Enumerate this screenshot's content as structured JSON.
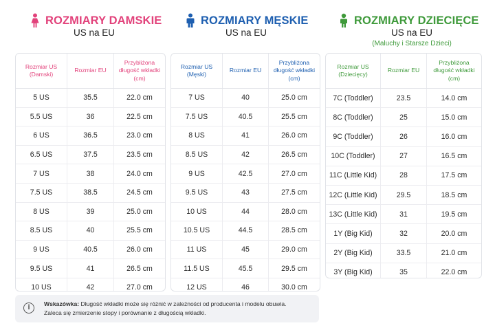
{
  "women": {
    "title": "ROZMIARY DAMSKIE",
    "subtitle": "US na EU",
    "icon": "woman-icon",
    "color": "#e2427b",
    "headers": [
      "Rozmiar US (Damski)",
      "Rozmiar EU",
      "Przybliżona długość wkładki (cm)"
    ],
    "rows": [
      [
        "5 US",
        "35.5",
        "22.0 cm"
      ],
      [
        "5.5 US",
        "36",
        "22.5 cm"
      ],
      [
        "6 US",
        "36.5",
        "23.0 cm"
      ],
      [
        "6.5 US",
        "37.5",
        "23.5 cm"
      ],
      [
        "7 US",
        "38",
        "24.0 cm"
      ],
      [
        "7.5 US",
        "38.5",
        "24.5 cm"
      ],
      [
        "8 US",
        "39",
        "25.0 cm"
      ],
      [
        "8.5 US",
        "40",
        "25.5 cm"
      ],
      [
        "9 US",
        "40.5",
        "26.0 cm"
      ],
      [
        "9.5 US",
        "41",
        "26.5 cm"
      ],
      [
        "10 US",
        "42",
        "27.0 cm"
      ]
    ]
  },
  "men": {
    "title": "ROZMIARY MĘSKIE",
    "subtitle": "US na EU",
    "icon": "man-icon",
    "color": "#1e5fb0",
    "headers": [
      "Rozmiar US (Męski)",
      "Rozmiar EU",
      "Przybliżona długość wkładki (cm)"
    ],
    "rows": [
      [
        "7 US",
        "40",
        "25.0 cm"
      ],
      [
        "7.5 US",
        "40.5",
        "25.5 cm"
      ],
      [
        "8 US",
        "41",
        "26.0 cm"
      ],
      [
        "8.5 US",
        "42",
        "26.5 cm"
      ],
      [
        "9 US",
        "42.5",
        "27.0 cm"
      ],
      [
        "9.5 US",
        "43",
        "27.5 cm"
      ],
      [
        "10 US",
        "44",
        "28.0 cm"
      ],
      [
        "10.5 US",
        "44.5",
        "28.5 cm"
      ],
      [
        "11 US",
        "45",
        "29.0 cm"
      ],
      [
        "11.5 US",
        "45.5",
        "29.5 cm"
      ],
      [
        "12 US",
        "46",
        "30.0 cm"
      ]
    ]
  },
  "kids": {
    "title": "ROZMIARY DZIECIĘCE",
    "subtitle": "US na EU",
    "note": "(Maluchy i Starsze Dzieci)",
    "icon": "child-icon",
    "color": "#3f9a3b",
    "headers": [
      "Rozmiar US (Dziecięcy)",
      "Rozmiar EU",
      "Przybliżona długość wkładki (cm)"
    ],
    "rows": [
      [
        "7C (Toddler)",
        "23.5",
        "14.0 cm"
      ],
      [
        "8C (Toddler)",
        "25",
        "15.0 cm"
      ],
      [
        "9C (Toddler)",
        "26",
        "16.0 cm"
      ],
      [
        "10C (Toddler)",
        "27",
        "16.5 cm"
      ],
      [
        "11C (Little Kid)",
        "28",
        "17.5 cm"
      ],
      [
        "12C (Little Kid)",
        "29.5",
        "18.5 cm"
      ],
      [
        "13C (Little Kid)",
        "31",
        "19.5 cm"
      ],
      [
        "1Y (Big Kid)",
        "32",
        "20.0 cm"
      ],
      [
        "2Y (Big Kid)",
        "33.5",
        "21.0 cm"
      ],
      [
        "3Y (Big Kid)",
        "35",
        "22.0 cm"
      ]
    ]
  },
  "tip": {
    "icon": "info-icon",
    "label": "Wskazówka:",
    "line1": "Długość wkładki może się różnić w zależności od producenta i modelu obuwia.",
    "line2": "Zaleca się zmierzenie stopy i porównanie z długością wkładki."
  }
}
